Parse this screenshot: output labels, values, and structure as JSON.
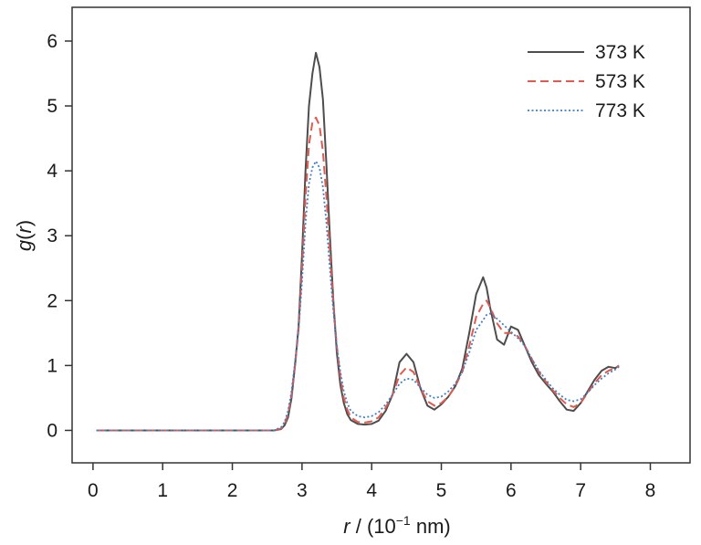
{
  "chart_data": {
    "type": "line",
    "xlabel_italic": "r",
    "xlabel_rest": " / (10",
    "xlabel_sup": "−1",
    "xlabel_unit": " nm)",
    "ylabel_italic_g": "g",
    "ylabel_open": "(",
    "ylabel_italic_r": "r",
    "ylabel_close": ")",
    "xlim": [
      -0.3,
      8.57
    ],
    "ylim": [
      -0.5,
      6.52
    ],
    "xticks": [
      0,
      1,
      2,
      3,
      4,
      5,
      6,
      7,
      8
    ],
    "yticks": [
      0,
      1,
      2,
      3,
      4,
      5,
      6
    ],
    "legend_position": "top-right",
    "x": [
      0.05,
      0.5,
      1.0,
      1.5,
      2.0,
      2.5,
      2.6,
      2.7,
      2.75,
      2.8,
      2.85,
      2.9,
      2.95,
      3.0,
      3.05,
      3.1,
      3.15,
      3.2,
      3.25,
      3.3,
      3.35,
      3.4,
      3.45,
      3.5,
      3.55,
      3.6,
      3.65,
      3.7,
      3.8,
      3.9,
      4.0,
      4.1,
      4.2,
      4.3,
      4.4,
      4.5,
      4.6,
      4.7,
      4.8,
      4.9,
      5.0,
      5.1,
      5.2,
      5.3,
      5.4,
      5.5,
      5.6,
      5.65,
      5.7,
      5.8,
      5.9,
      6.0,
      6.1,
      6.2,
      6.3,
      6.4,
      6.5,
      6.6,
      6.7,
      6.8,
      6.9,
      7.0,
      7.1,
      7.2,
      7.3,
      7.4,
      7.5,
      7.55
    ],
    "series": [
      {
        "name": "373 K",
        "color": "#4d4d4d",
        "dash": "solid",
        "values": [
          0,
          0,
          0,
          0,
          0,
          0,
          0,
          0.02,
          0.08,
          0.2,
          0.5,
          1.0,
          1.6,
          2.7,
          4.0,
          5.0,
          5.5,
          5.82,
          5.6,
          5.1,
          4.1,
          3.0,
          2.0,
          1.2,
          0.7,
          0.42,
          0.25,
          0.16,
          0.1,
          0.09,
          0.1,
          0.15,
          0.3,
          0.55,
          1.05,
          1.18,
          1.05,
          0.65,
          0.38,
          0.32,
          0.4,
          0.52,
          0.68,
          0.95,
          1.5,
          2.1,
          2.36,
          2.2,
          1.9,
          1.4,
          1.32,
          1.6,
          1.55,
          1.3,
          1.05,
          0.85,
          0.72,
          0.6,
          0.45,
          0.32,
          0.3,
          0.42,
          0.6,
          0.78,
          0.92,
          0.98,
          0.96,
          1.0
        ]
      },
      {
        "name": "573 K",
        "color": "#e05a4e",
        "dash": "dashed",
        "values": [
          0,
          0,
          0,
          0,
          0,
          0,
          0,
          0.03,
          0.1,
          0.25,
          0.55,
          1.0,
          1.55,
          2.5,
          3.6,
          4.4,
          4.75,
          4.82,
          4.7,
          4.3,
          3.6,
          2.75,
          1.95,
          1.3,
          0.82,
          0.5,
          0.32,
          0.2,
          0.13,
          0.12,
          0.14,
          0.2,
          0.35,
          0.55,
          0.85,
          0.97,
          0.9,
          0.65,
          0.45,
          0.38,
          0.42,
          0.52,
          0.68,
          0.9,
          1.3,
          1.75,
          1.95,
          2.0,
          1.9,
          1.65,
          1.5,
          1.5,
          1.45,
          1.3,
          1.1,
          0.9,
          0.75,
          0.62,
          0.5,
          0.4,
          0.36,
          0.42,
          0.58,
          0.73,
          0.85,
          0.92,
          0.96,
          1.0
        ]
      },
      {
        "name": "773 K",
        "color": "#3f7fc4",
        "dash": "dotted",
        "values": [
          0,
          0,
          0,
          0,
          0,
          0,
          0,
          0.05,
          0.13,
          0.3,
          0.6,
          1.05,
          1.55,
          2.3,
          3.2,
          3.8,
          4.05,
          4.15,
          4.05,
          3.75,
          3.2,
          2.5,
          1.85,
          1.3,
          0.9,
          0.6,
          0.42,
          0.3,
          0.22,
          0.2,
          0.22,
          0.28,
          0.4,
          0.55,
          0.72,
          0.8,
          0.78,
          0.66,
          0.55,
          0.5,
          0.52,
          0.6,
          0.72,
          0.9,
          1.2,
          1.55,
          1.7,
          1.78,
          1.8,
          1.72,
          1.62,
          1.52,
          1.42,
          1.3,
          1.1,
          0.92,
          0.78,
          0.65,
          0.55,
          0.47,
          0.45,
          0.48,
          0.58,
          0.7,
          0.8,
          0.88,
          0.94,
          0.98
        ]
      }
    ]
  }
}
